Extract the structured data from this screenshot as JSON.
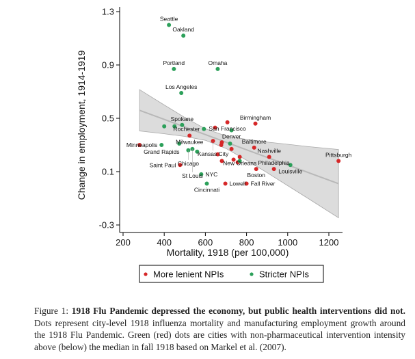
{
  "chart_data": {
    "type": "scatter",
    "xlabel": "Mortality, 1918 (per 100,000)",
    "ylabel": "Change in employment, 1914-1919",
    "xlim": [
      170,
      1250
    ],
    "ylim": [
      -0.32,
      1.3
    ],
    "xticks": [
      "200",
      "400",
      "600",
      "800",
      "1000",
      "1200"
    ],
    "xtick_values": [
      200,
      400,
      600,
      800,
      1000,
      1200
    ],
    "yticks": [
      "1.3",
      "0.9",
      "0.5",
      "0.1",
      "-0.3"
    ],
    "ytick_values": [
      1.3,
      0.9,
      0.5,
      0.1,
      -0.3
    ],
    "legend": {
      "placement": "bottom",
      "entries": [
        {
          "label": "More lenient NPIs",
          "color": "#d62728"
        },
        {
          "label": "Stricter NPIs",
          "color": "#2ca05a"
        }
      ]
    },
    "colors": {
      "lenient": "#d62728",
      "stricter": "#2ca05a",
      "band": "#dcdcdc",
      "fit": "#b8b8b8"
    },
    "points": [
      {
        "x": 423,
        "y": 1.2,
        "g": "stricter",
        "label": "Seattle"
      },
      {
        "x": 493,
        "y": 1.12,
        "g": "stricter",
        "label": "Oakland"
      },
      {
        "x": 447,
        "y": 0.87,
        "g": "stricter",
        "label": "Portland"
      },
      {
        "x": 660,
        "y": 0.87,
        "g": "stricter",
        "label": "Omaha"
      },
      {
        "x": 483,
        "y": 0.69,
        "g": "stricter",
        "label": "Los Angeles"
      },
      {
        "x": 843,
        "y": 0.46,
        "g": "lenient",
        "label": "Birmingham"
      },
      {
        "x": 707,
        "y": 0.47,
        "g": "lenient",
        "label": "San Francisco"
      },
      {
        "x": 727,
        "y": 0.41,
        "g": "stricter",
        "label": "Denver"
      },
      {
        "x": 647,
        "y": 0.43,
        "g": "lenient",
        "label": ""
      },
      {
        "x": 487,
        "y": 0.45,
        "g": "stricter",
        "label": "Spokane"
      },
      {
        "x": 450,
        "y": 0.44,
        "g": "stricter",
        "label": ""
      },
      {
        "x": 400,
        "y": 0.44,
        "g": "stricter",
        "label": ""
      },
      {
        "x": 593,
        "y": 0.42,
        "g": "stricter",
        "label": "Rochester"
      },
      {
        "x": 523,
        "y": 0.37,
        "g": "lenient",
        "label": "Milwaukee"
      },
      {
        "x": 637,
        "y": 0.33,
        "g": "lenient",
        "label": "Kansas City"
      },
      {
        "x": 680,
        "y": 0.32,
        "g": "lenient",
        "label": ""
      },
      {
        "x": 677,
        "y": 0.3,
        "g": "lenient",
        "label": ""
      },
      {
        "x": 720,
        "y": 0.31,
        "g": "stricter",
        "label": ""
      },
      {
        "x": 280,
        "y": 0.3,
        "g": "lenient",
        "label": "Grand Rapids"
      },
      {
        "x": 387,
        "y": 0.3,
        "g": "stricter",
        "label": "Minneapolis"
      },
      {
        "x": 473,
        "y": 0.31,
        "g": "stricter",
        "label": ""
      },
      {
        "x": 517,
        "y": 0.26,
        "g": "stricter",
        "label": "Chicago"
      },
      {
        "x": 537,
        "y": 0.27,
        "g": "stricter",
        "label": "St Louis"
      },
      {
        "x": 560,
        "y": 0.25,
        "g": "stricter",
        "label": ""
      },
      {
        "x": 727,
        "y": 0.27,
        "g": "lenient",
        "label": ""
      },
      {
        "x": 837,
        "y": 0.28,
        "g": "lenient",
        "label": "Baltimore"
      },
      {
        "x": 910,
        "y": 0.21,
        "g": "lenient",
        "label": "Nashville"
      },
      {
        "x": 477,
        "y": 0.15,
        "g": "lenient",
        "label": "Saint Paul"
      },
      {
        "x": 660,
        "y": 0.23,
        "g": "lenient",
        "label": ""
      },
      {
        "x": 680,
        "y": 0.18,
        "g": "lenient",
        "label": ""
      },
      {
        "x": 737,
        "y": 0.19,
        "g": "lenient",
        "label": ""
      },
      {
        "x": 757,
        "y": 0.17,
        "g": "lenient",
        "label": ""
      },
      {
        "x": 767,
        "y": 0.18,
        "g": "stricter",
        "label": ""
      },
      {
        "x": 767,
        "y": 0.21,
        "g": "lenient",
        "label": "New Orleans"
      },
      {
        "x": 847,
        "y": 0.12,
        "g": "lenient",
        "label": "Boston"
      },
      {
        "x": 933,
        "y": 0.12,
        "g": "lenient",
        "label": "Philadelphia"
      },
      {
        "x": 1013,
        "y": 0.15,
        "g": "stricter",
        "label": "Louisville"
      },
      {
        "x": 1247,
        "y": 0.18,
        "g": "lenient",
        "label": "Pittsburgh"
      },
      {
        "x": 580,
        "y": 0.08,
        "g": "stricter",
        "label": "NYC"
      },
      {
        "x": 607,
        "y": 0.01,
        "g": "stricter",
        "label": "Cincinnati"
      },
      {
        "x": 697,
        "y": 0.01,
        "g": "lenient",
        "label": "Lowell"
      },
      {
        "x": 800,
        "y": 0.01,
        "g": "lenient",
        "label": "Fall River"
      }
    ],
    "fit": {
      "x": [
        280,
        400,
        500,
        600,
        700,
        800,
        900,
        1000,
        1100,
        1247
      ],
      "y": [
        0.56,
        0.492,
        0.435,
        0.378,
        0.321,
        0.264,
        0.207,
        0.15,
        0.093,
        0.01
      ],
      "ci_halfwidth": [
        0.155,
        0.108,
        0.071,
        0.043,
        0.047,
        0.078,
        0.115,
        0.155,
        0.195,
        0.256
      ]
    }
  },
  "caption": {
    "prefix": "Figure 1: ",
    "bold": "1918 Flu Pandemic depressed the economy, but public health interventions did not.",
    "text": " Dots represent city-level 1918 influenza mortality and manufacturing employment growth around the 1918 Flu Pandemic. Green (red) dots are cities with non-pharmaceutical intervention intensity above (below) the median in fall 1918 based on Markel et al. (2007)."
  }
}
